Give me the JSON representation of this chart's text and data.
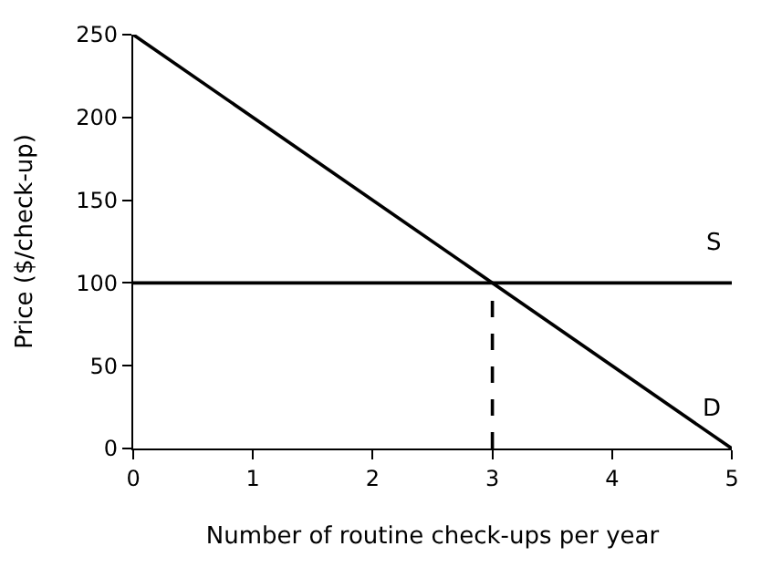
{
  "chart_data": {
    "type": "line",
    "xlabel": "Number of routine check-ups per year",
    "ylabel": "Price ($/check-up)",
    "series": [
      {
        "name": "S",
        "color": "#000000",
        "x": [
          0,
          5
        ],
        "values": [
          100,
          100
        ],
        "line_style": "solid"
      },
      {
        "name": "D",
        "color": "#000000",
        "x": [
          0,
          5
        ],
        "values": [
          250,
          0
        ],
        "line_style": "solid"
      },
      {
        "color": "#000000",
        "x": [
          3,
          3
        ],
        "values": [
          0,
          100
        ],
        "line_style": "dashed"
      }
    ],
    "xlim": [
      0,
      5
    ],
    "xticks": [
      0,
      1,
      2,
      3,
      4,
      5
    ],
    "ylim": [
      0,
      250
    ],
    "yticks": [
      0,
      50,
      100,
      150,
      200,
      250
    ],
    "legend": false,
    "marker": "none"
  }
}
